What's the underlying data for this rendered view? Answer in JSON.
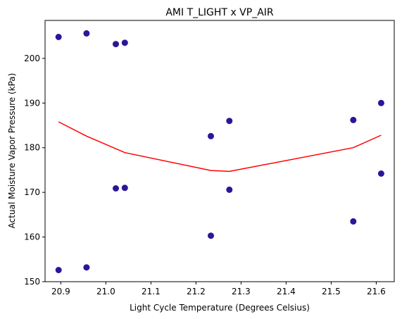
{
  "chart_data": {
    "type": "scatter",
    "title": "AMI T_LIGHT x VP_AIR",
    "xlabel": "Light Cycle Temperature (Degrees Celsius)",
    "ylabel": "Actual Moisture Vapor Pressure (kPa)",
    "xlim": [
      20.865,
      21.64
    ],
    "ylim": [
      150,
      208.5
    ],
    "xticks": [
      20.9,
      21.0,
      21.1,
      21.2,
      21.3,
      21.4,
      21.5,
      21.6
    ],
    "xtick_labels": [
      "20.9",
      "21.0",
      "21.1",
      "21.2",
      "21.3",
      "21.4",
      "21.5",
      "21.6"
    ],
    "yticks": [
      150,
      160,
      170,
      180,
      190,
      200
    ],
    "ytick_labels": [
      "150",
      "160",
      "170",
      "180",
      "190",
      "200"
    ],
    "grid": false,
    "series": [
      {
        "kind": "scatter",
        "color": "#2b1699",
        "points": [
          {
            "x": 20.895,
            "y": 204.8
          },
          {
            "x": 20.895,
            "y": 152.6
          },
          {
            "x": 20.957,
            "y": 205.6
          },
          {
            "x": 20.957,
            "y": 153.2
          },
          {
            "x": 21.022,
            "y": 203.2
          },
          {
            "x": 21.022,
            "y": 170.9
          },
          {
            "x": 21.042,
            "y": 203.5
          },
          {
            "x": 21.042,
            "y": 171.0
          },
          {
            "x": 21.233,
            "y": 182.6
          },
          {
            "x": 21.233,
            "y": 160.3
          },
          {
            "x": 21.274,
            "y": 186.0
          },
          {
            "x": 21.274,
            "y": 170.6
          },
          {
            "x": 21.549,
            "y": 186.2
          },
          {
            "x": 21.549,
            "y": 163.5
          },
          {
            "x": 21.611,
            "y": 190.0
          },
          {
            "x": 21.611,
            "y": 174.2
          }
        ]
      },
      {
        "kind": "line",
        "color": "#ff0000",
        "points": [
          {
            "x": 20.895,
            "y": 185.8
          },
          {
            "x": 20.957,
            "y": 182.6
          },
          {
            "x": 21.042,
            "y": 178.9
          },
          {
            "x": 21.233,
            "y": 174.9
          },
          {
            "x": 21.274,
            "y": 174.7
          },
          {
            "x": 21.549,
            "y": 180.0
          },
          {
            "x": 21.611,
            "y": 182.8
          }
        ]
      }
    ]
  }
}
